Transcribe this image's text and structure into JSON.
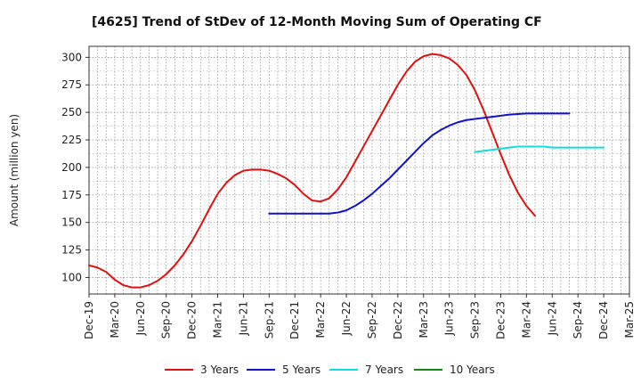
{
  "chart_data": {
    "type": "line",
    "title": "[4625]  Trend of StDev of 12-Month Moving Sum of Operating CF",
    "xlabel": "",
    "ylabel": "Amount (million yen)",
    "ylim": [
      85,
      310
    ],
    "yticks": [
      100,
      125,
      150,
      175,
      200,
      225,
      250,
      275,
      300
    ],
    "grid": true,
    "legend_position": "bottom",
    "x_tick_labels": [
      "Dec-19",
      "Mar-20",
      "Jun-20",
      "Sep-20",
      "Dec-20",
      "Mar-21",
      "Jun-21",
      "Sep-21",
      "Dec-21",
      "Mar-22",
      "Jun-22",
      "Sep-22",
      "Dec-22",
      "Mar-23",
      "Jun-23",
      "Sep-23",
      "Dec-23",
      "Mar-24",
      "Jun-24",
      "Sep-24",
      "Dec-24",
      "Mar-25"
    ],
    "x_start": "Dec-19",
    "series": [
      {
        "name": "3 Years",
        "color": "#dd1111",
        "start_index": 0,
        "values": [
          111,
          109,
          105,
          98,
          93,
          91,
          91,
          93,
          97,
          103,
          111,
          121,
          133,
          147,
          162,
          176,
          186,
          193,
          197,
          198,
          198,
          197,
          194,
          190,
          184,
          176,
          170,
          169,
          172,
          180,
          191,
          205,
          219,
          233,
          247,
          261,
          275,
          287,
          296,
          301,
          303,
          302,
          299,
          293,
          284,
          270,
          252,
          232,
          212,
          193,
          177,
          165,
          156
        ]
      },
      {
        "name": "5 Years",
        "color": "#1111cc",
        "start_index": 21,
        "values": [
          158,
          158,
          158,
          158,
          158,
          158,
          158,
          158,
          159,
          161,
          165,
          170,
          176,
          183,
          190,
          198,
          206,
          214,
          222,
          229,
          234,
          238,
          241,
          243,
          244,
          245,
          246,
          247,
          248,
          248.5,
          249,
          249,
          249,
          249,
          249,
          249
        ]
      },
      {
        "name": "7 Years",
        "color": "#11dddd",
        "start_index": 45,
        "values": [
          214,
          215,
          216,
          217,
          218,
          219,
          219,
          219,
          219,
          218,
          218,
          218,
          218,
          218,
          218,
          218
        ]
      },
      {
        "name": "10 Years",
        "color": "#118811",
        "start_index": null,
        "values": []
      }
    ]
  }
}
